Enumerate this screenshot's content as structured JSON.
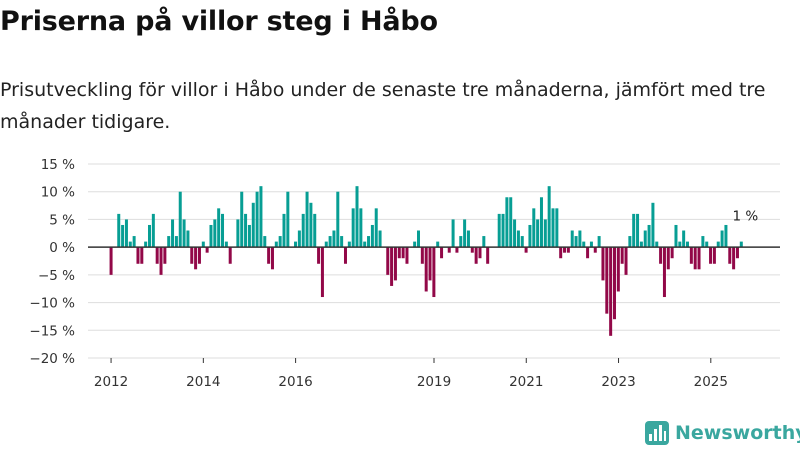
{
  "title": "Priserna på villor steg i Håbo",
  "subtitle": "Prisutveckling för villor i Håbo under de senaste tre månaderna, jämfört med tre månader tidigare.",
  "brand": {
    "name": "Newsworthy",
    "icon": "newsworthy-logo-icon",
    "color": "#3aa79f"
  },
  "colors": {
    "positive": "#079e94",
    "negative": "#920848",
    "grid": "#dddddd",
    "zero": "#333333"
  },
  "chart_data": {
    "type": "bar",
    "title": "Priserna på villor steg i Håbo",
    "xlabel": "",
    "ylabel": "",
    "ylim": [
      -20,
      15
    ],
    "yticks": [
      15,
      10,
      5,
      0,
      -5,
      -10,
      -15,
      -20
    ],
    "ytick_labels": [
      "15 %",
      "10 %",
      "5 %",
      "0 %",
      "−5 %",
      "−10 %",
      "−15 %",
      "−20 %"
    ],
    "xlim": [
      2011.5,
      2026.5
    ],
    "xticks": [
      2012,
      2014,
      2016,
      2019,
      2021,
      2023,
      2025
    ],
    "xtick_labels": [
      "2012",
      "2014",
      "2016",
      "2019",
      "2021",
      "2023",
      "2025"
    ],
    "annotation": {
      "label": "1 %",
      "x": 2025.75,
      "y": 1
    },
    "series": [
      {
        "name": "Prisutveckling",
        "start": 2012.0,
        "step": 0.0833,
        "values": [
          -5,
          0,
          6,
          4,
          5,
          1,
          2,
          -3,
          -3,
          1,
          4,
          6,
          -3,
          -5,
          -3,
          2,
          5,
          2,
          10,
          5,
          3,
          -3,
          -4,
          -3,
          1,
          -1,
          4,
          5,
          7,
          6,
          1,
          -3,
          0,
          5,
          10,
          6,
          4,
          8,
          10,
          11,
          2,
          -3,
          -4,
          1,
          2,
          6,
          10,
          0,
          1,
          3,
          6,
          10,
          8,
          6,
          -3,
          -9,
          1,
          2,
          3,
          10,
          2,
          -3,
          1,
          7,
          11,
          7,
          1,
          2,
          4,
          7,
          3,
          0,
          -5,
          -7,
          -6,
          -2,
          -2,
          -3,
          0,
          1,
          3,
          -3,
          -8,
          -6,
          -9,
          1,
          -2,
          0,
          -1,
          5,
          -1,
          2,
          5,
          3,
          -1,
          -3,
          -2,
          2,
          -3,
          0,
          0,
          6,
          6,
          9,
          9,
          5,
          3,
          2,
          -1,
          4,
          7,
          5,
          9,
          5,
          11,
          7,
          7,
          -2,
          -1,
          -1,
          3,
          2,
          3,
          1,
          -2,
          1,
          -1,
          2,
          -6,
          -12,
          -16,
          -13,
          -8,
          -3,
          -5,
          2,
          6,
          6,
          1,
          3,
          4,
          8,
          1,
          -3,
          -9,
          -4,
          -2,
          4,
          1,
          3,
          1,
          -3,
          -4,
          -4,
          2,
          1,
          -3,
          -3,
          1,
          3,
          4,
          -3,
          -4,
          -2,
          1
        ]
      }
    ]
  }
}
